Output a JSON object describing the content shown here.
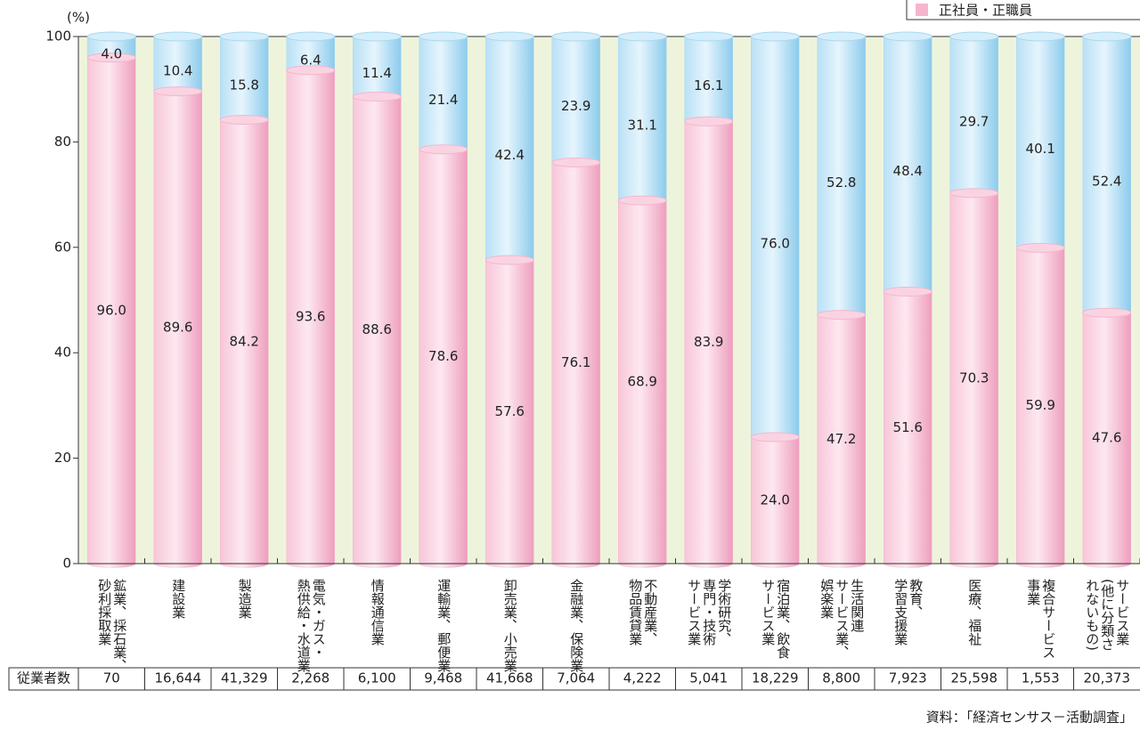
{
  "chart_data": {
    "type": "stacked_bar",
    "unit": "(%)",
    "legend": "top-right",
    "categories": [
      "鉱業、採石業、\n砂利採取業",
      "建設業",
      "製造業",
      "電気・ガス・\n熱供給・水道業",
      "情報通信業",
      "運輸業、郵便業",
      "卸売業、小売業",
      "金融業、保険業",
      "不動産業、\n物品賃貸業",
      "学術研究、\n専門・技術\nサービス業",
      "宿泊業、飲食\nサービス業",
      "生活関連\nサービス業、\n娯楽業",
      "教育、\n学習支援業",
      "医療、福祉",
      "複合サービス\n事業",
      "サービス業\n(他に分類さ\nれないもの)"
    ],
    "series": [
      {
        "name": "正社員・正職員",
        "color": "#f5b6cd",
        "values": [
          96.0,
          89.6,
          84.2,
          93.6,
          88.6,
          78.6,
          57.6,
          76.1,
          68.9,
          83.9,
          24.0,
          47.2,
          51.6,
          70.3,
          59.9,
          47.6
        ],
        "value_labels": [
          "96.0",
          "89.6",
          "84.2",
          "93.6",
          "88.6",
          "78.6",
          "57.6",
          "76.1",
          "68.9",
          "83.9",
          "24.0",
          "47.2",
          "51.6",
          "70.3",
          "59.9",
          "47.6"
        ]
      },
      {
        "color": "#a9d8f1",
        "values": [
          4.0,
          10.4,
          15.8,
          6.4,
          11.4,
          21.4,
          42.4,
          23.9,
          31.1,
          16.1,
          76.0,
          52.8,
          48.4,
          29.7,
          40.1,
          52.4
        ],
        "value_labels": [
          "4.0",
          "10.4",
          "15.8",
          "6.4",
          "11.4",
          "21.4",
          "42.4",
          "23.9",
          "31.1",
          "16.1",
          "76.0",
          "52.8",
          "48.4",
          "29.7",
          "40.1",
          "52.4"
        ]
      }
    ],
    "ylim": [
      0,
      100
    ],
    "yticks": [
      0,
      20,
      40,
      60,
      80,
      100
    ],
    "background": "#eef4dc"
  },
  "employees": {
    "label": "従業者数",
    "values": [
      "70",
      "16,644",
      "41,329",
      "2,268",
      "6,100",
      "9,468",
      "41,668",
      "7,064",
      "4,222",
      "5,041",
      "18,229",
      "8,800",
      "7,923",
      "25,598",
      "1,553",
      "20,373"
    ]
  },
  "source": "資料：「経済センサス－活動調査」"
}
